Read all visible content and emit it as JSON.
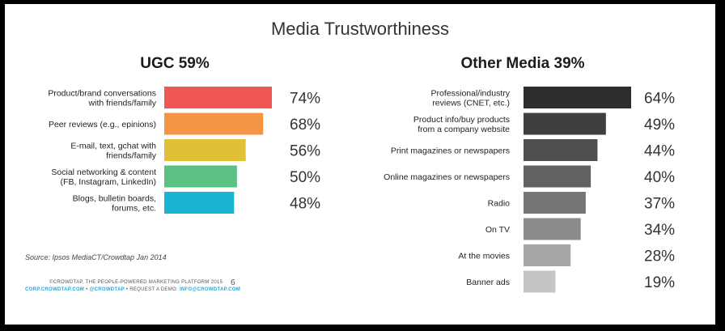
{
  "slide": {
    "title": "Media Trustworthiness",
    "source": "Source: Ipsos MediaCT/Crowdtap Jan 2014",
    "footer": {
      "line1": "©CROWDTAP, THE PEOPLE-POWERED MARKETING PLATFORM 2015",
      "site": "CORP.CROWDTAP.COM",
      "sep1": " • ",
      "handle": "@CROWDTAP",
      "sep2": " • ",
      "demo": "REQUEST A DEMO: ",
      "email": "INFO@CROWDTAP.COM"
    },
    "page_number": "6"
  },
  "chart_data": [
    {
      "type": "bar",
      "orientation": "horizontal",
      "title": "UGC 59%",
      "categories": [
        [
          "Product/brand conversations",
          "with friends/family"
        ],
        [
          "Peer reviews (e.g., epinions)"
        ],
        [
          "E-mail, text, gchat with",
          "friends/family"
        ],
        [
          "Social networking & content",
          "(FB, Instagram, LinkedIn)"
        ],
        [
          "Blogs, bulletin boards,",
          "forums, etc."
        ]
      ],
      "values": [
        74,
        68,
        56,
        50,
        48
      ],
      "value_labels": [
        "74%",
        "68%",
        "56%",
        "50%",
        "48%"
      ],
      "colors": [
        "#ef5656",
        "#f59443",
        "#e2c035",
        "#5ac182",
        "#1ab3d2"
      ],
      "xlim": [
        0,
        74
      ],
      "grid": false
    },
    {
      "type": "bar",
      "orientation": "horizontal",
      "title": "Other Media 39%",
      "categories": [
        [
          "Professional/industry",
          "reviews (CNET, etc.)"
        ],
        [
          "Product info/buy products",
          "from a company website"
        ],
        [
          "Print magazines or newspapers"
        ],
        [
          "Online magazines or newspapers"
        ],
        [
          "Radio"
        ],
        [
          "On TV"
        ],
        [
          "At the movies"
        ],
        [
          "Banner ads"
        ]
      ],
      "values": [
        64,
        49,
        44,
        40,
        37,
        34,
        28,
        19
      ],
      "value_labels": [
        "64%",
        "49%",
        "44%",
        "40%",
        "37%",
        "34%",
        "28%",
        "19%"
      ],
      "colors": [
        "#2d2d2d",
        "#3f3f3f",
        "#4f4f4f",
        "#626262",
        "#767676",
        "#8b8b8b",
        "#a6a6a6",
        "#c5c5c5"
      ],
      "xlim": [
        0,
        64
      ],
      "grid": false
    }
  ]
}
